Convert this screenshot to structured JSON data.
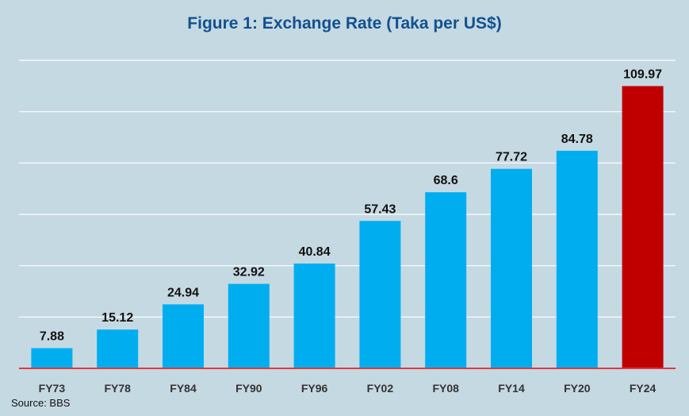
{
  "chart_data": {
    "type": "bar",
    "title": "Figure 1: Exchange Rate (Taka per US$)",
    "categories": [
      "FY73",
      "FY78",
      "FY84",
      "FY90",
      "FY96",
      "FY02",
      "FY08",
      "FY14",
      "FY20",
      "FY24"
    ],
    "values": [
      7.88,
      15.12,
      24.94,
      32.92,
      40.84,
      57.43,
      68.6,
      77.72,
      84.78,
      109.97
    ],
    "data_labels": [
      "7.88",
      "15.12",
      "24.94",
      "32.92",
      "40.84",
      "57.43",
      "68.6",
      "77.72",
      "84.78",
      "109.97"
    ],
    "ylim": [
      0,
      120
    ],
    "grid": true,
    "colors": {
      "bar": "#00aeef",
      "highlight_bar": "#c00000",
      "baseline": "#e0383e",
      "gridline": "#ffffff",
      "title": "#12518f"
    },
    "highlight_category": "FY24",
    "source": "Source: BBS"
  }
}
